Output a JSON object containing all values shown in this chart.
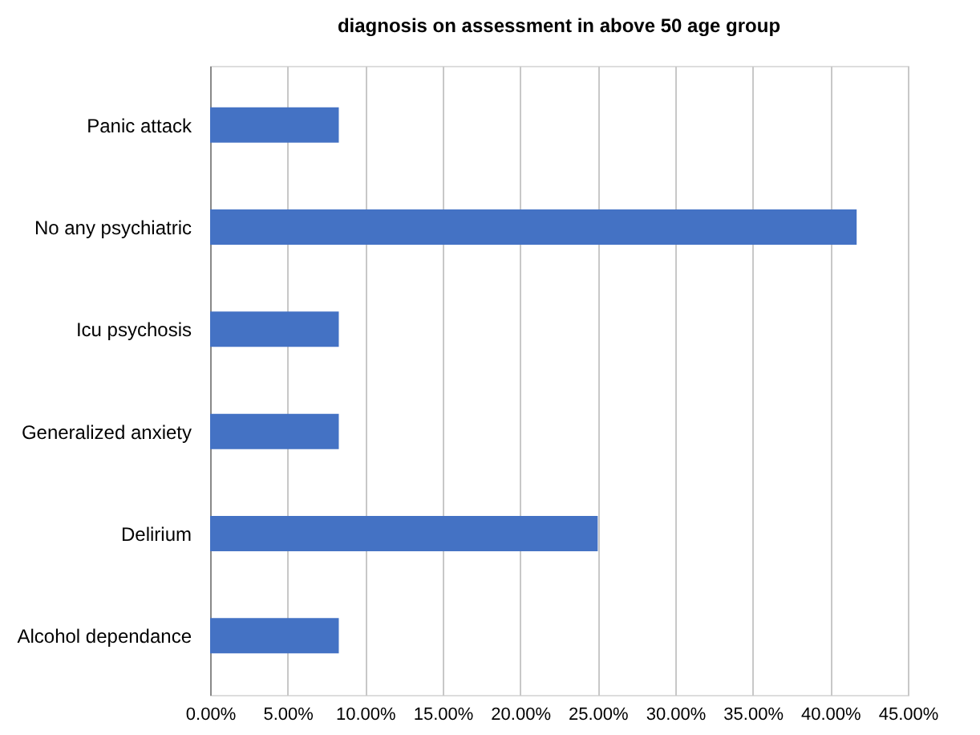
{
  "chart_data": {
    "type": "bar",
    "orientation": "horizontal",
    "title": "diagnosis on assessment in above 50 age group",
    "categories": [
      "Panic attack",
      "No any psychiatric",
      "Icu psychosis",
      "Generalized anxiety",
      "Delirium",
      "Alcohol dependance"
    ],
    "values": [
      8.3,
      41.7,
      8.3,
      8.3,
      25,
      8.3
    ],
    "color": "#4472c4",
    "xlim": [
      0,
      45
    ],
    "xticks": [
      {
        "value": 0,
        "label": "0.00%"
      },
      {
        "value": 5,
        "label": "5.00%"
      },
      {
        "value": 10,
        "label": "10.00%"
      },
      {
        "value": 15,
        "label": "15.00%"
      },
      {
        "value": 20,
        "label": "20.00%"
      },
      {
        "value": 25,
        "label": "25.00%"
      },
      {
        "value": 30,
        "label": "30.00%"
      },
      {
        "value": 35,
        "label": "35.00%"
      },
      {
        "value": 40,
        "label": "40.00%"
      },
      {
        "value": 45,
        "label": "45.00%"
      }
    ],
    "grid": "x"
  }
}
